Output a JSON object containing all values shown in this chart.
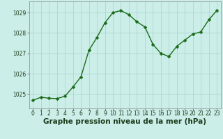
{
  "x": [
    0,
    1,
    2,
    3,
    4,
    5,
    6,
    7,
    8,
    9,
    10,
    11,
    12,
    13,
    14,
    15,
    16,
    17,
    18,
    19,
    20,
    21,
    22,
    23
  ],
  "y": [
    1024.7,
    1024.85,
    1024.8,
    1024.78,
    1024.9,
    1025.35,
    1025.85,
    1027.15,
    1027.78,
    1028.5,
    1029.0,
    1029.1,
    1028.9,
    1028.55,
    1028.3,
    1027.45,
    1027.0,
    1026.85,
    1027.35,
    1027.65,
    1027.95,
    1028.05,
    1028.65,
    1029.1
  ],
  "line_color": "#1a6b1a",
  "marker": "D",
  "markersize": 2.5,
  "linewidth": 1.0,
  "background_color": "#cceee8",
  "grid_color": "#aad8d0",
  "xlabel": "Graphe pression niveau de la mer (hPa)",
  "xlabel_fontsize": 7.5,
  "xlabel_fontweight": "bold",
  "ytick_labels": [
    "1025",
    "1026",
    "1027",
    "1028",
    "1029"
  ],
  "ytick_values": [
    1025,
    1026,
    1027,
    1028,
    1029
  ],
  "ylim": [
    1024.3,
    1029.55
  ],
  "xlim": [
    -0.5,
    23.5
  ],
  "tick_fontsize": 5.5,
  "xtick_values": [
    0,
    1,
    2,
    3,
    4,
    5,
    6,
    7,
    8,
    9,
    10,
    11,
    12,
    13,
    14,
    15,
    16,
    17,
    18,
    19,
    20,
    21,
    22,
    23
  ]
}
